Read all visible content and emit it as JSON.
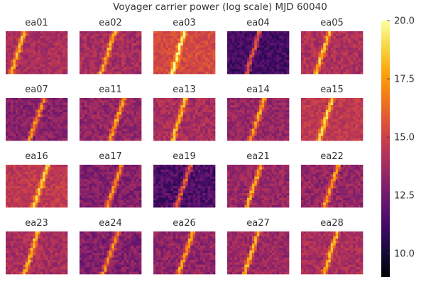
{
  "chart_data": {
    "type": "heatmap",
    "title": "Voyager carrier power (log scale) MJD 60040",
    "panels": [
      {
        "name": "ea01",
        "base": 14.0,
        "noise": 0.45,
        "slope": -0.32,
        "start": 7.2
      },
      {
        "name": "ea02",
        "base": 13.9,
        "noise": 0.55,
        "slope": -0.32,
        "start": 13.8
      },
      {
        "name": "ea03",
        "base": 15.3,
        "noise": 0.45,
        "slope": -0.28,
        "start": 12.0
      },
      {
        "name": "ea04",
        "base": 11.3,
        "noise": 0.55,
        "slope": -0.3,
        "start": 12.5
      },
      {
        "name": "ea05",
        "base": 14.1,
        "noise": 0.5,
        "slope": -0.32,
        "start": 11.0
      },
      {
        "name": "ea07",
        "base": 13.1,
        "noise": 0.55,
        "slope": -0.34,
        "start": 15.0
      },
      {
        "name": "ea11",
        "base": 13.4,
        "noise": 0.55,
        "slope": -0.33,
        "start": 17.5
      },
      {
        "name": "ea13",
        "base": 14.0,
        "noise": 0.5,
        "slope": -0.3,
        "start": 12.5
      },
      {
        "name": "ea14",
        "base": 13.5,
        "noise": 0.5,
        "slope": -0.32,
        "start": 14.5
      },
      {
        "name": "ea15",
        "base": 14.6,
        "noise": 0.4,
        "slope": -0.3,
        "start": 12.0
      },
      {
        "name": "ea16",
        "base": 14.6,
        "noise": 0.45,
        "slope": -0.32,
        "start": 16.5
      },
      {
        "name": "ea17",
        "base": 13.0,
        "noise": 0.55,
        "slope": -0.34,
        "start": 16.5
      },
      {
        "name": "ea19",
        "base": 11.6,
        "noise": 0.65,
        "slope": -0.33,
        "start": 14.5
      },
      {
        "name": "ea21",
        "base": 13.5,
        "noise": 0.5,
        "slope": -0.32,
        "start": 13.0
      },
      {
        "name": "ea22",
        "base": 13.4,
        "noise": 0.55,
        "slope": -0.32,
        "start": 14.5
      },
      {
        "name": "ea23",
        "base": 14.0,
        "noise": 0.5,
        "slope": -0.31,
        "start": 12.5
      },
      {
        "name": "ea24",
        "base": 12.9,
        "noise": 0.6,
        "slope": -0.33,
        "start": 15.0
      },
      {
        "name": "ea26",
        "base": 13.3,
        "noise": 0.55,
        "slope": -0.33,
        "start": 15.5
      },
      {
        "name": "ea27",
        "base": 13.6,
        "noise": 0.5,
        "slope": -0.32,
        "start": 12.0
      },
      {
        "name": "ea28",
        "base": 14.0,
        "noise": 0.5,
        "slope": -0.3,
        "start": 14.0
      }
    ],
    "colorbar": {
      "colormap": "inferno",
      "range": [
        9.0,
        20.0
      ],
      "ticks": [
        10.0,
        12.5,
        15.0,
        17.5,
        20.0
      ],
      "tick_labels": [
        "10.0",
        "12.5",
        "15.0",
        "17.5",
        "20.0"
      ]
    },
    "grid": false
  }
}
